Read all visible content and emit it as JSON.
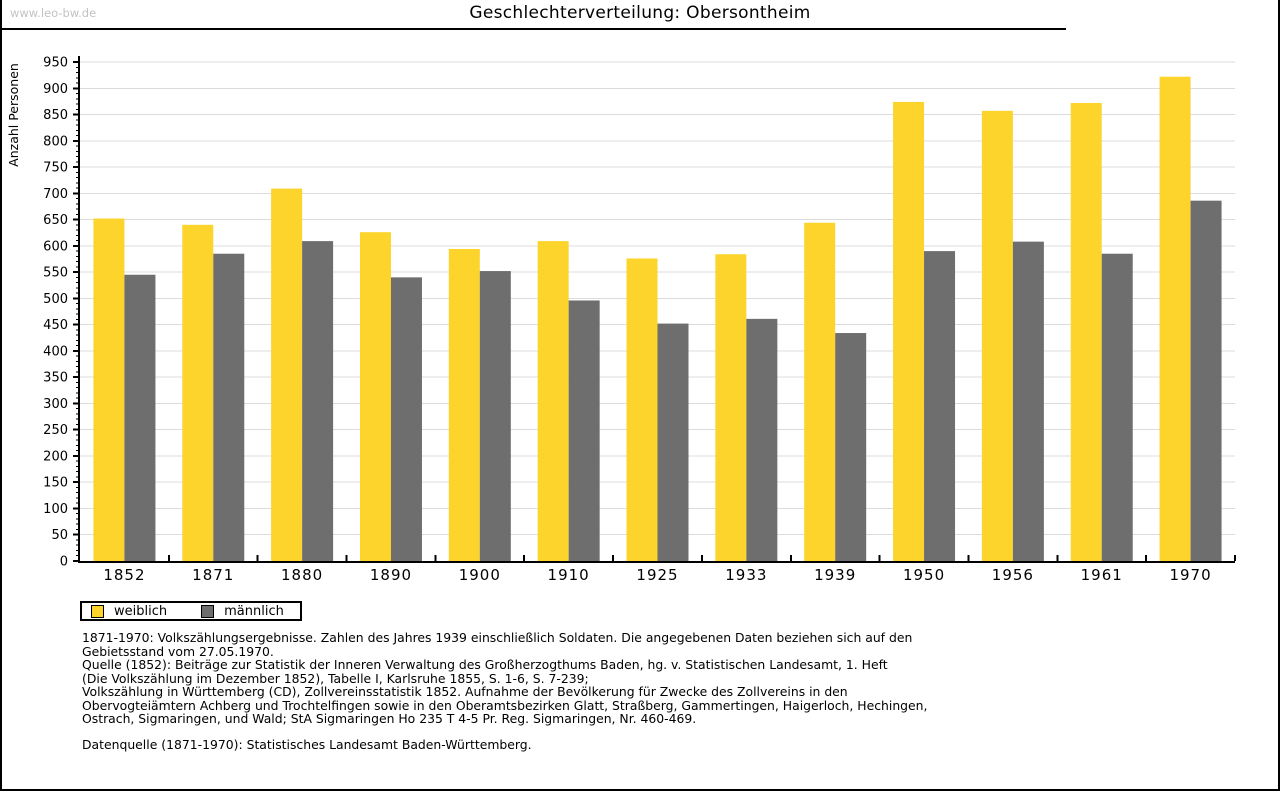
{
  "page": {
    "watermark": "www.leo-bw.de",
    "title": "Geschlechterverteilung: Obersontheim"
  },
  "chart_data": {
    "type": "bar",
    "title": "Geschlechterverteilung: Obersontheim",
    "xlabel": "",
    "ylabel": "Anzahl Personen",
    "ylim": [
      0,
      950
    ],
    "ytick_step": 50,
    "ytick_minor_step": 10,
    "grid": true,
    "legend_position": "bottom-left",
    "categories": [
      "1852",
      "1871",
      "1880",
      "1890",
      "1900",
      "1910",
      "1925",
      "1933",
      "1939",
      "1950",
      "1956",
      "1961",
      "1970"
    ],
    "series": [
      {
        "name": "weiblich",
        "color": "#fcd42b",
        "values": [
          652,
          640,
          709,
          626,
          594,
          609,
          576,
          584,
          644,
          874,
          857,
          872,
          922
        ]
      },
      {
        "name": "männlich",
        "color": "#6e6e6e",
        "values": [
          545,
          585,
          609,
          540,
          552,
          496,
          452,
          461,
          434,
          590,
          608,
          585,
          686
        ]
      }
    ]
  },
  "colors": {
    "grid": "#dcdcdc",
    "axis": "#000000"
  },
  "footnotes": {
    "lines": [
      "1871-1970: Volkszählungsergebnisse. Zahlen des Jahres 1939 einschließlich Soldaten. Die angegebenen Daten beziehen sich auf den",
      "Gebietsstand vom 27.05.1970.",
      "Quelle (1852): Beiträge zur Statistik der Inneren Verwaltung des Großherzogthums Baden, hg. v. Statistischen Landesamt, 1. Heft",
      "(Die Volkszählung im Dezember 1852), Tabelle I, Karlsruhe 1855, S. 1-6, S. 7-239;",
      "Volkszählung in Württemberg (CD), Zollvereinsstatistik 1852. Aufnahme der Bevölkerung für Zwecke des Zollvereins in den",
      "Obervogteiämtern Achberg und Trochtelfingen sowie in den Oberamtsbezirken Glatt, Straßberg, Gammertingen, Haigerloch, Hechingen,",
      "Ostrach, Sigmaringen, und Wald; StA Sigmaringen Ho 235 T 4-5 Pr. Reg. Sigmaringen, Nr. 460-469."
    ]
  },
  "datasource": "Datenquelle (1871-1970): Statistisches Landesamt Baden-Württemberg."
}
